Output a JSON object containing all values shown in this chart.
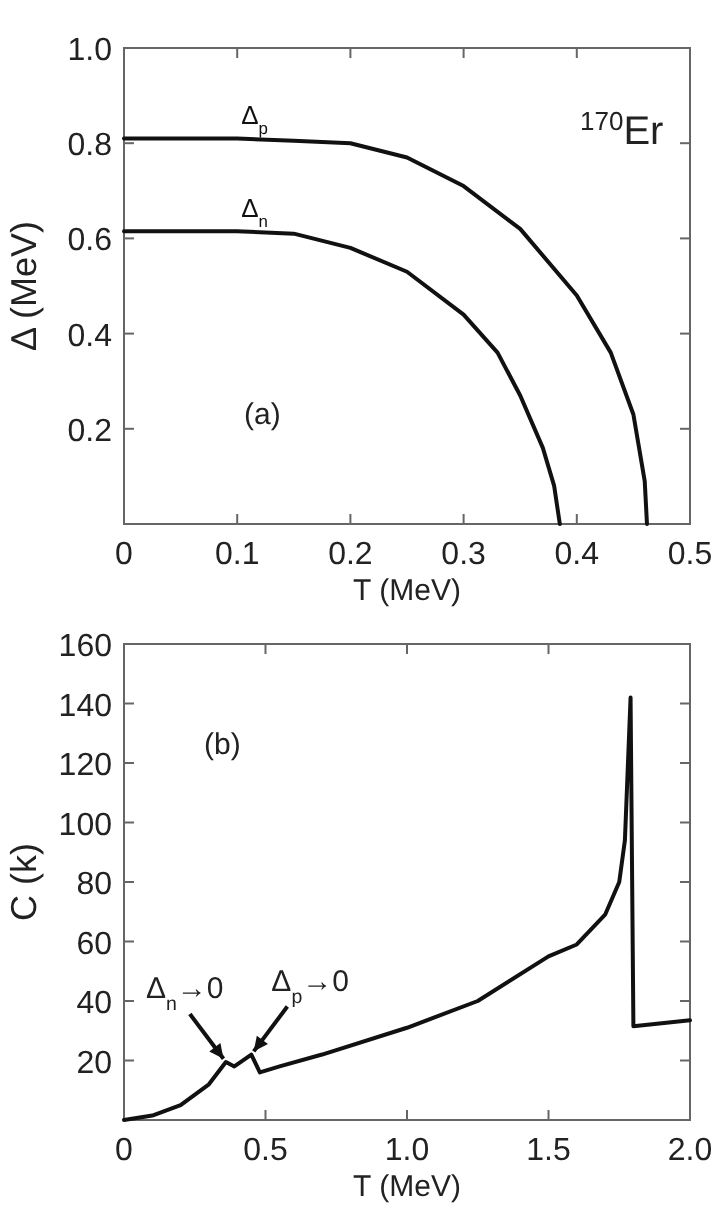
{
  "chart_data": [
    {
      "type": "line",
      "xlabel": "T (MeV)",
      "ylabel": "Δ (MeV)",
      "xlim": [
        0,
        0.5
      ],
      "ylim": [
        0,
        1
      ],
      "xticks": [
        0,
        0.1,
        0.2,
        0.3,
        0.4,
        0.5
      ],
      "yticks": [
        0.2,
        0.4,
        0.6,
        0.8,
        {
          "value": 1,
          "label": "1.0"
        }
      ],
      "marker": "none",
      "line_style": "solid",
      "annotations": [
        "$^{170}$Er",
        "(a)"
      ],
      "series": [
        {
          "name": "Δ$_{p}$",
          "color": "#111111",
          "x": [
            0,
            0.1,
            0.15,
            0.2,
            0.25,
            0.3,
            0.35,
            0.4,
            0.43,
            0.45,
            0.46,
            0.462
          ],
          "values": [
            0.81,
            0.81,
            0.805,
            0.8,
            0.77,
            0.71,
            0.62,
            0.48,
            0.36,
            0.23,
            0.09,
            0
          ]
        },
        {
          "name": "Δ$_{n}$",
          "color": "#111111",
          "x": [
            0,
            0.1,
            0.15,
            0.2,
            0.25,
            0.3,
            0.33,
            0.35,
            0.37,
            0.38,
            0.385
          ],
          "values": [
            0.615,
            0.615,
            0.61,
            0.58,
            0.53,
            0.44,
            0.36,
            0.27,
            0.16,
            0.08,
            0
          ]
        }
      ]
    },
    {
      "type": "line",
      "xlabel": "T (MeV)",
      "ylabel": "C (k)",
      "xlim": [
        0,
        2
      ],
      "ylim": [
        0,
        160
      ],
      "xticks": [
        0,
        {
          "value": 0.5,
          "label": "0.5"
        },
        {
          "value": 1,
          "label": "1.0"
        },
        {
          "value": 1.5,
          "label": "1.5"
        },
        {
          "value": 2,
          "label": "2.0"
        }
      ],
      "yticks": [
        20,
        40,
        60,
        80,
        100,
        120,
        140,
        160
      ],
      "marker": "none",
      "line_style": "solid",
      "annotations": [
        "(b)",
        {
          "text": "Δ$_{n}$→0",
          "x": 0.36,
          "y": 19.5
        },
        {
          "text": "Δ$_{p}$→0",
          "x": 0.45,
          "y": 22
        }
      ],
      "series": [
        {
          "color": "#111111",
          "x": [
            0,
            0.1,
            0.2,
            0.3,
            0.36,
            0.39,
            0.45,
            0.48,
            0.55,
            0.7,
            1.0,
            1.25,
            1.5,
            1.6,
            1.7,
            1.75,
            1.77,
            1.79,
            1.8,
            2.0
          ],
          "values": [
            0,
            1.5,
            5,
            12,
            19.5,
            18,
            22,
            16,
            18,
            22,
            31,
            40,
            55,
            59,
            69,
            80,
            94,
            142,
            31.5,
            33.5
          ]
        }
      ]
    }
  ]
}
